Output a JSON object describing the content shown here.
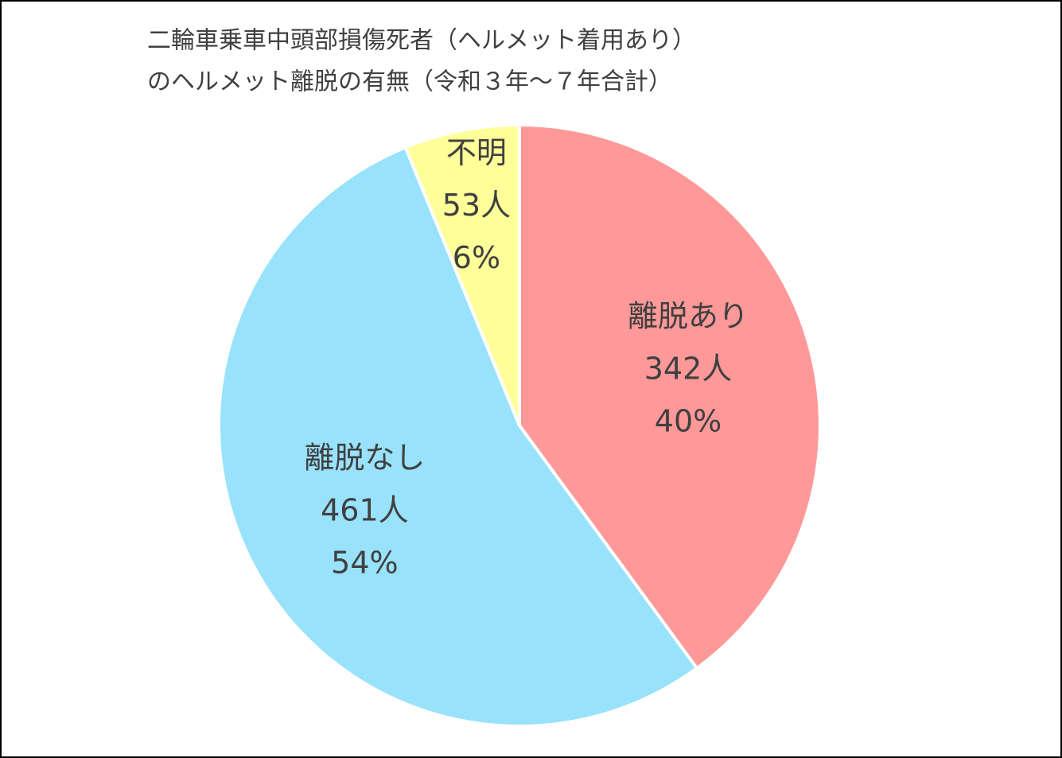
{
  "chart_data": {
    "type": "pie",
    "title": [
      "二輪車乗車中頭部損傷死者（ヘルメット着用あり）",
      "のヘルメット離脱の有無（令和３年～７年合計）"
    ],
    "categories": [
      "離脱あり",
      "離脱なし",
      "不明"
    ],
    "values": [
      342,
      461,
      53
    ],
    "value_labels": [
      "342人",
      "461人",
      "53人"
    ],
    "percent_labels": [
      "40%",
      "54%",
      "6%"
    ],
    "colors": [
      "#ff9999",
      "#99e2fc",
      "#ffff99"
    ]
  }
}
